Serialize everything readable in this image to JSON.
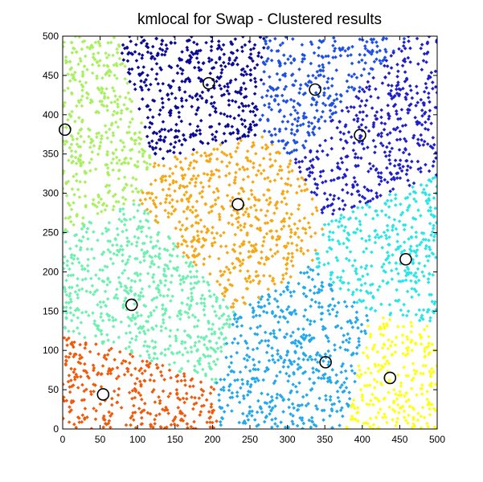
{
  "chart_data": {
    "type": "scatter",
    "title": "kmlocal for Swap - Clustered results",
    "xlabel": "",
    "ylabel": "",
    "xlim": [
      0,
      500
    ],
    "ylim": [
      0,
      500
    ],
    "x_ticks": [
      0,
      50,
      100,
      150,
      200,
      250,
      300,
      350,
      400,
      450,
      500
    ],
    "y_ticks": [
      0,
      50,
      100,
      150,
      200,
      250,
      300,
      350,
      400,
      450,
      500
    ],
    "x_tick_labels": [
      "0",
      "50",
      "100",
      "150",
      "200",
      "250",
      "300",
      "350",
      "400",
      "450",
      "500"
    ],
    "y_tick_labels": [
      "0",
      "50",
      "100",
      "150",
      "200",
      "250",
      "300",
      "350",
      "400",
      "450",
      "500"
    ],
    "grid": false,
    "legend": "none",
    "marker": "diamond",
    "centers": [
      {
        "x": 195,
        "y": 440,
        "color": "#0a0a96"
      },
      {
        "x": 337,
        "y": 432,
        "color": "#1e50e6"
      },
      {
        "x": 397,
        "y": 374,
        "color": "#1e1ecc"
      },
      {
        "x": 3,
        "y": 381,
        "color": "#a8f060"
      },
      {
        "x": 234,
        "y": 286,
        "color": "#f5a814"
      },
      {
        "x": 458,
        "y": 216,
        "color": "#28e6e6"
      },
      {
        "x": 92,
        "y": 158,
        "color": "#6ef0b0"
      },
      {
        "x": 351,
        "y": 85,
        "color": "#22a8ec"
      },
      {
        "x": 437,
        "y": 65,
        "color": "#ffff14"
      },
      {
        "x": 54,
        "y": 44,
        "color": "#f05a0a"
      }
    ],
    "center_marker_color": "#000000",
    "center_marker": "circle"
  }
}
